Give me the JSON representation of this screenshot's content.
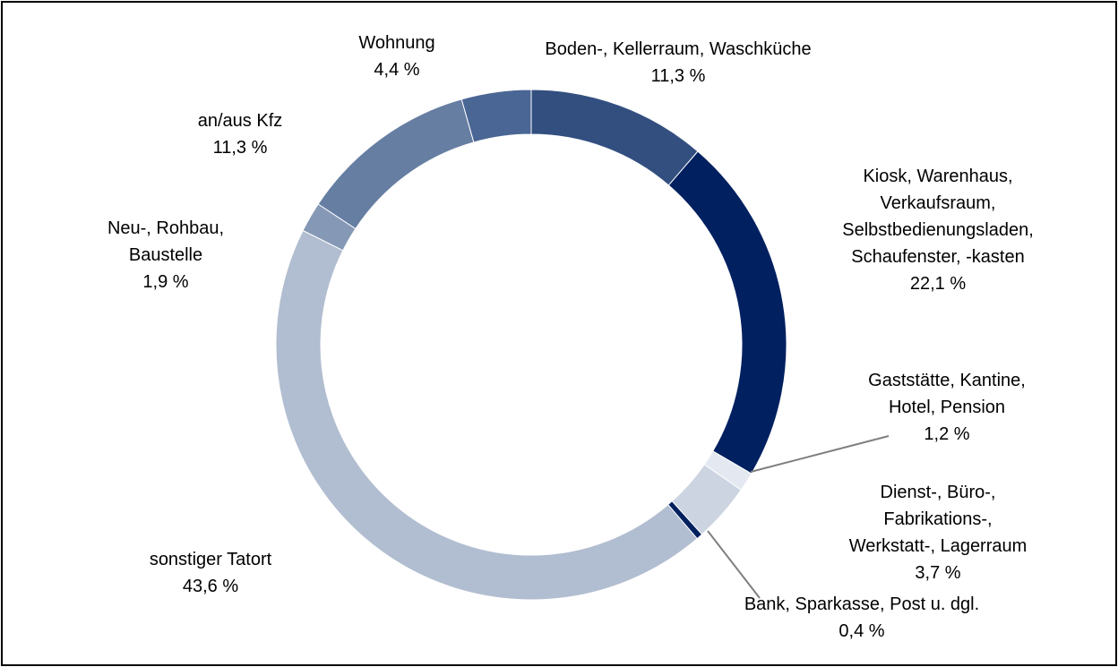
{
  "chart_data": {
    "type": "donut",
    "categories": [
      "Boden-, Kellerraum, Waschküche",
      "Kiosk, Warenhaus,\nVerkaufsraum,\nSelbstbedienungsladen,\nSchaufenster, -kasten",
      "Gaststätte, Kantine,\nHotel, Pension",
      "Dienst-, Büro-, Fabrikations-,\nWerkstatt-, Lagerraum",
      "Bank, Sparkasse, Post u. dgl.",
      "sonstiger Tatort",
      "Neu-, Rohbau,\nBaustelle",
      "an/aus Kfz",
      "Wohnung"
    ],
    "values": [
      11.3,
      22.1,
      1.2,
      3.7,
      0.4,
      43.6,
      1.9,
      11.3,
      4.4
    ],
    "value_labels": [
      "11,3 %",
      "22,1 %",
      "1,2 %",
      "3,7 %",
      "0,4 %",
      "43,6 %",
      "1,9 %",
      "11,3 %",
      "4,4 %"
    ],
    "colors": [
      "#334f80",
      "#002060",
      "#e4e8f0",
      "#ccd4e2",
      "#002060",
      "#b1bdd0",
      "#8598b6",
      "#667ea2",
      "#4a6694"
    ]
  }
}
